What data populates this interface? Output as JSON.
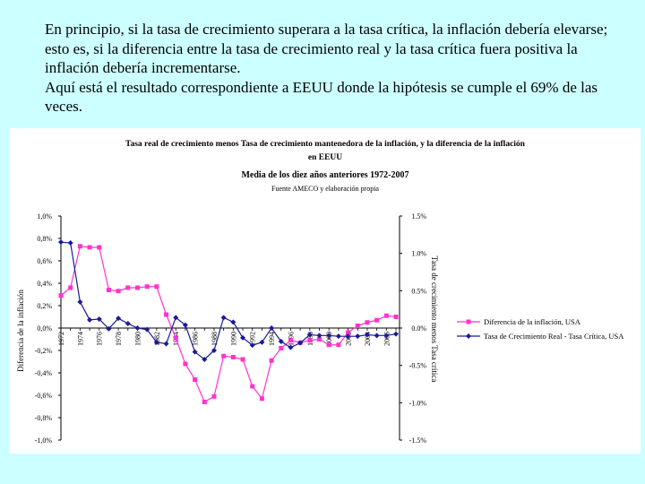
{
  "text": {
    "paragraph1": "En principio, si la tasa de crecimiento superara a la tasa crítica, la inflación debería elevarse; esto es, si la diferencia entre la tasa de crecimiento real y la tasa crítica fuera positiva la inflación debería incrementarse.",
    "paragraph2": "Aquí está el resultado correspondiente a EEUU donde la hipótesis se cumple el 69% de las veces."
  },
  "chart_data": {
    "type": "line",
    "title": "Tasa real de crecimiento menos Tasa de crecimiento mantenedora de la inflación, y la diferencia de la inflación en EEUU",
    "subtitle": "Media de los diez años anteriores 1972-2007",
    "source": "Fuente AMECO y elaboración propia",
    "ylabel_left": "Diferencia de la inflación",
    "ylabel_right": "Tasa de crecimiento menos Tasa crítica",
    "ylim_left": [
      -1.0,
      1.0
    ],
    "ylim_right": [
      -1.5,
      1.5
    ],
    "left_ticks": [
      "1,0%",
      "0,8%",
      "0,6%",
      "0,4%",
      "0,2%",
      "0,0%",
      "-0,2%",
      "-0,4%",
      "-0,6%",
      "-0,8%",
      "-1,0%"
    ],
    "right_ticks": [
      "1.5%",
      "1.0%",
      "0.5%",
      "0.0%",
      "-0.5%",
      "-1.0%",
      "-1.5%"
    ],
    "x": [
      1972,
      1973,
      1974,
      1975,
      1976,
      1977,
      1978,
      1979,
      1980,
      1981,
      1982,
      1983,
      1984,
      1985,
      1986,
      1987,
      1988,
      1989,
      1990,
      1991,
      1992,
      1993,
      1994,
      1995,
      1996,
      1997,
      1998,
      1999,
      2000,
      2001,
      2002,
      2003,
      2004,
      2005,
      2006,
      2007
    ],
    "x_tick_labels": [
      "1972",
      "1974",
      "1976",
      "1978",
      "1980",
      "1982",
      "1984",
      "1986",
      "1988",
      "1990",
      "1992",
      "1994",
      "1996",
      "1998",
      "2000",
      "2002",
      "2004",
      "2006"
    ],
    "legend_position": "right",
    "series": [
      {
        "name": "Diferencia de la inflación, USA",
        "axis": "left",
        "color": "#ff33cc",
        "marker": "square",
        "values": [
          0.29,
          0.36,
          0.73,
          0.72,
          0.72,
          0.34,
          0.33,
          0.36,
          0.36,
          0.37,
          0.37,
          0.12,
          -0.09,
          -0.32,
          -0.46,
          -0.66,
          -0.61,
          -0.25,
          -0.26,
          -0.28,
          -0.52,
          -0.63,
          -0.29,
          -0.18,
          -0.11,
          -0.13,
          -0.11,
          -0.1,
          -0.15,
          -0.15,
          -0.04,
          0.02,
          0.05,
          0.07,
          0.11,
          0.1
        ]
      },
      {
        "name": "Tasa de Crecimiento Real - Tasa Crítica, USA",
        "axis": "right",
        "color": "#1a1a99",
        "marker": "diamond",
        "values": [
          1.15,
          1.14,
          0.35,
          0.11,
          0.12,
          -0.01,
          0.13,
          0.06,
          0.0,
          -0.02,
          -0.19,
          -0.21,
          0.14,
          0.04,
          -0.32,
          -0.42,
          -0.3,
          0.14,
          0.08,
          -0.13,
          -0.23,
          -0.19,
          0.0,
          -0.18,
          -0.26,
          -0.2,
          -0.09,
          -0.1,
          -0.1,
          -0.11,
          -0.11,
          -0.11,
          -0.09,
          -0.1,
          -0.1,
          -0.08
        ]
      }
    ]
  }
}
